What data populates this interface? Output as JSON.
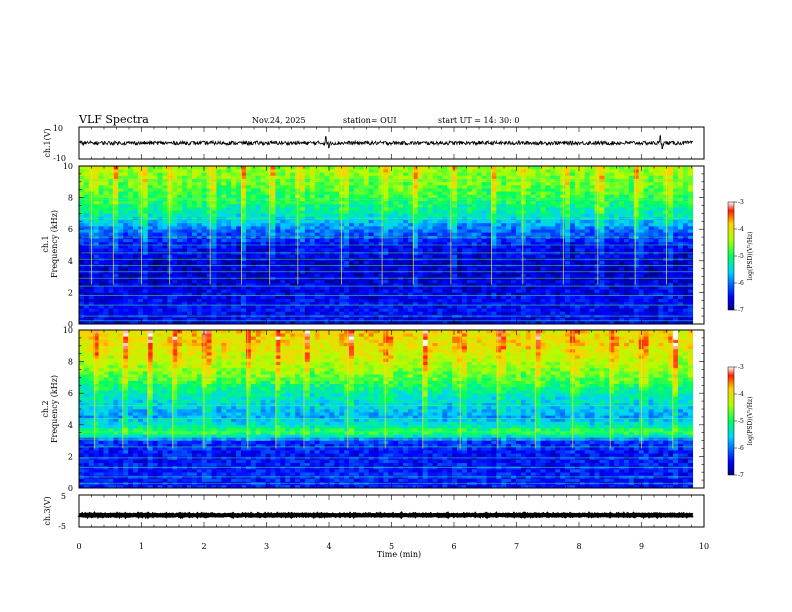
{
  "header": {
    "title": "VLF Spectra",
    "date": "Nov.24, 2025",
    "station": "station= OUI",
    "start": "start  UT =   14: 30: 0"
  },
  "chart_data": [
    {
      "id": "ch1-waveform",
      "type": "line",
      "ylabel": "ch.1(V)",
      "ylim": [
        -10,
        10
      ],
      "yticks": [
        "10",
        "-10"
      ],
      "baseline": 0,
      "noise_amplitude": 1.2,
      "spikes": [
        {
          "t": 3.95,
          "value": 4
        },
        {
          "t": 4.0,
          "value": -3
        },
        {
          "t": 9.3,
          "value": 4.5
        },
        {
          "t": 9.33,
          "value": -3.5
        }
      ]
    },
    {
      "id": "ch1-spectrogram",
      "type": "heatmap",
      "ylabel": "ch.1",
      "ylabel2": "Frequency (kHz)",
      "ylim": [
        0,
        10
      ],
      "yticks": [
        "0",
        "2",
        "4",
        "6",
        "8",
        "10"
      ],
      "xlim": [
        0,
        10
      ],
      "data_extent_min": 9.82,
      "cbar_label": "log(PSD)(V²/Hz)",
      "cbar_range": [
        -7,
        -3
      ],
      "cbar_ticks": [
        "-3",
        "-4",
        "-5",
        "-6",
        "-7"
      ],
      "profile_freq_khz": [
        0,
        1,
        2,
        3,
        4,
        5,
        6,
        7,
        8,
        9,
        10
      ],
      "profile_log_psd": [
        -6.6,
        -6.5,
        -6.6,
        -6.7,
        -6.7,
        -6.5,
        -6.0,
        -5.3,
        -4.9,
        -4.6,
        -4.4
      ],
      "lines_khz": [
        0.2,
        0.5,
        1.2,
        1.8,
        2.4,
        2.9,
        3.3,
        3.7,
        4.1,
        4.5,
        5.0,
        5.5,
        6.7,
        7.9,
        9.1
      ],
      "bursts_min": [
        0.2,
        0.55,
        1.0,
        1.45,
        2.1,
        2.6,
        3.05,
        3.5,
        4.2,
        4.85,
        5.35,
        5.95,
        6.6,
        7.1,
        7.75,
        8.3,
        8.9,
        9.4
      ]
    },
    {
      "id": "ch2-spectrogram",
      "type": "heatmap",
      "ylabel": "ch.2",
      "ylabel2": "Frequency (kHz)",
      "ylim": [
        0,
        10
      ],
      "yticks": [
        "0",
        "2",
        "4",
        "6",
        "8",
        "10"
      ],
      "xlim": [
        0,
        10
      ],
      "data_extent_min": 9.82,
      "cbar_label": "log(PSD)(V²/Hz)",
      "cbar_range": [
        -7,
        -3
      ],
      "cbar_ticks": [
        "-3",
        "-4",
        "-5",
        "-6",
        "-7"
      ],
      "profile_freq_khz": [
        0,
        1,
        2,
        3,
        3.4,
        3.6,
        3.8,
        4.5,
        6,
        7,
        8,
        9,
        10
      ],
      "profile_log_psd": [
        -6.4,
        -6.4,
        -6.5,
        -6.3,
        -5.1,
        -4.8,
        -5.2,
        -5.8,
        -5.3,
        -4.7,
        -4.3,
        -4.0,
        -3.9
      ],
      "lines_khz": [
        0.3,
        0.7,
        1.3,
        1.9,
        2.6,
        3.1,
        3.55,
        4.4,
        5.2,
        7.0
      ],
      "bursts_min": [
        0.25,
        0.7,
        1.1,
        1.5,
        2.0,
        2.7,
        3.15,
        3.6,
        4.3,
        4.9,
        5.5,
        6.1,
        6.7,
        7.3,
        7.9,
        8.5,
        9.0,
        9.5
      ]
    },
    {
      "id": "ch3-waveform",
      "type": "line",
      "ylabel": "ch.3(V)",
      "ylim": [
        -5,
        5
      ],
      "yticks": [
        "5",
        "-5"
      ],
      "baseline": -1.3,
      "noise_amplitude": 0.15,
      "spikes": []
    }
  ],
  "xaxis": {
    "label": "Time  (min)",
    "ticks": [
      "0",
      "1",
      "2",
      "3",
      "4",
      "5",
      "6",
      "7",
      "8",
      "9",
      "10"
    ],
    "range": [
      0,
      10
    ]
  }
}
